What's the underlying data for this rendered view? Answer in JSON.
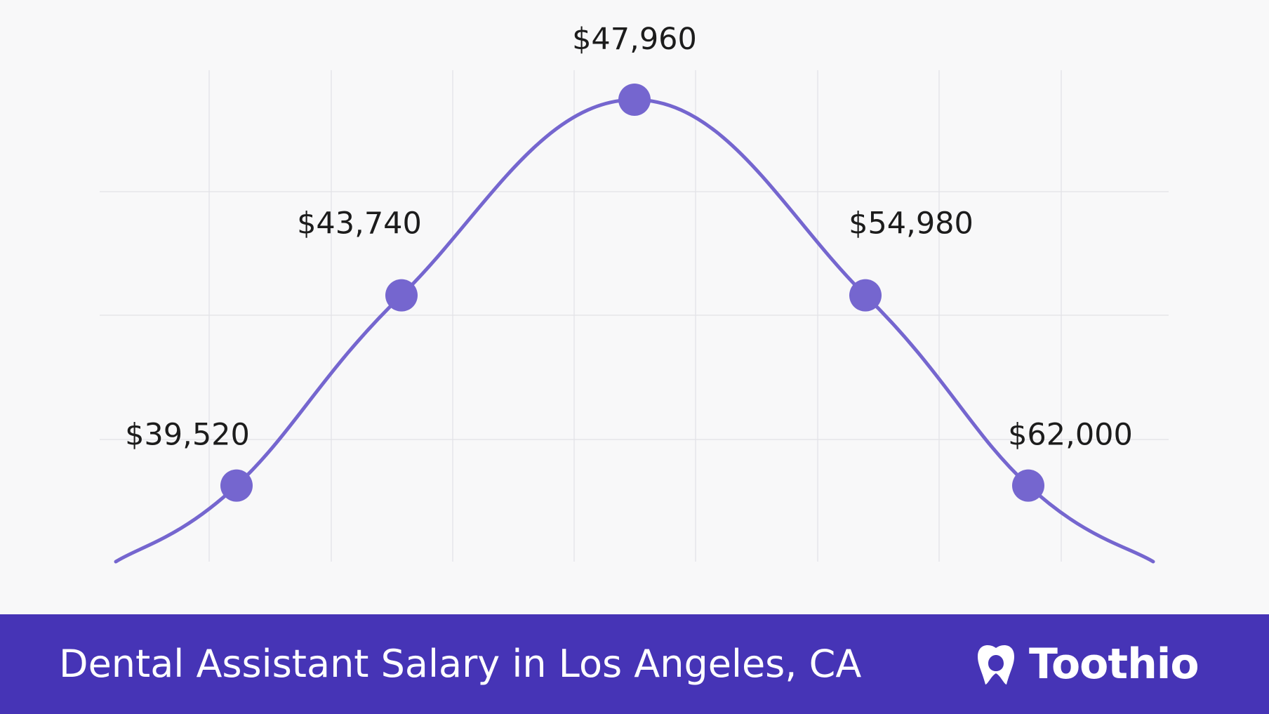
{
  "chart_data": {
    "type": "line",
    "title": "",
    "xlabel": "",
    "ylabel": "",
    "grid": true,
    "curve": "smooth bell curve",
    "series": [
      {
        "values": [
          39520,
          43740,
          47960,
          54980,
          62000
        ],
        "labels": [
          "$39,520",
          "$43,740",
          "$47,960",
          "$54,980",
          "$62,000"
        ],
        "level": [
          0.14,
          0.49,
          0.85,
          0.49,
          0.14
        ]
      }
    ],
    "colors": {
      "line": "#7566cf",
      "point": "#7566cf",
      "grid": "#e2e2e6"
    }
  },
  "footer": {
    "title": "Dental Assistant Salary in Los Angeles, CA",
    "brand": "Toothio",
    "brand_icon": "tooth-icon",
    "background": "#4634b6"
  }
}
